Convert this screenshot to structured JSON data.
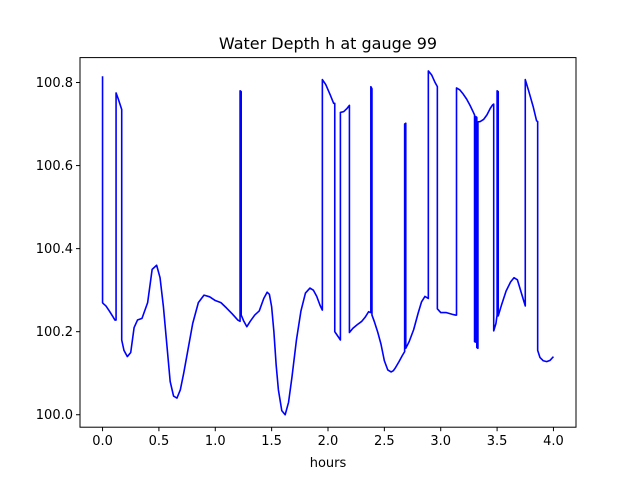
{
  "chart_data": {
    "type": "line",
    "title": "Water Depth h at gauge 99",
    "xlabel": "hours",
    "ylabel": "",
    "xlim": [
      -0.2,
      4.2
    ],
    "ylim": [
      99.97,
      100.86
    ],
    "xticks": [
      0.0,
      0.5,
      1.0,
      1.5,
      2.0,
      2.5,
      3.0,
      3.5,
      4.0
    ],
    "xtick_labels": [
      "0.0",
      "0.5",
      "1.0",
      "1.5",
      "2.0",
      "2.5",
      "3.0",
      "3.5",
      "4.0"
    ],
    "yticks": [
      100.0,
      100.2,
      100.4,
      100.6,
      100.8
    ],
    "ytick_labels": [
      "100.0",
      "100.2",
      "100.4",
      "100.6",
      "100.8"
    ],
    "grid": false,
    "series": [
      {
        "color": "#0000ff",
        "x": [
          0.0,
          0.0,
          0.005,
          0.03,
          0.06,
          0.09,
          0.11,
          0.12,
          0.12,
          0.14,
          0.17,
          0.17,
          0.19,
          0.22,
          0.25,
          0.28,
          0.31,
          0.35,
          0.4,
          0.44,
          0.48,
          0.51,
          0.54,
          0.57,
          0.6,
          0.63,
          0.66,
          0.69,
          0.72,
          0.76,
          0.8,
          0.85,
          0.9,
          0.95,
          1.0,
          1.05,
          1.1,
          1.15,
          1.2,
          1.22,
          1.22,
          1.23,
          1.23,
          1.25,
          1.28,
          1.31,
          1.35,
          1.39,
          1.43,
          1.46,
          1.48,
          1.5,
          1.52,
          1.54,
          1.56,
          1.59,
          1.62,
          1.65,
          1.68,
          1.72,
          1.76,
          1.8,
          1.84,
          1.87,
          1.9,
          1.93,
          1.95,
          1.95,
          1.98,
          2.02,
          2.05,
          2.06,
          2.06,
          2.08,
          2.1,
          2.11,
          2.11,
          2.14,
          2.17,
          2.19,
          2.19,
          2.22,
          2.26,
          2.3,
          2.33,
          2.36,
          2.38,
          2.38,
          2.39,
          2.39,
          2.41,
          2.44,
          2.47,
          2.5,
          2.53,
          2.56,
          2.58,
          2.6,
          2.63,
          2.66,
          2.68,
          2.68,
          2.69,
          2.69,
          2.72,
          2.76,
          2.8,
          2.83,
          2.86,
          2.89,
          2.89,
          2.92,
          2.95,
          2.97,
          2.97,
          3.0,
          3.05,
          3.1,
          3.13,
          3.14,
          3.14,
          3.17,
          3.2,
          3.23,
          3.26,
          3.29,
          3.3,
          3.3,
          3.31,
          3.31,
          3.32,
          3.32,
          3.33,
          3.33,
          3.35,
          3.38,
          3.41,
          3.44,
          3.46,
          3.47,
          3.47,
          3.49,
          3.5,
          3.5,
          3.51,
          3.51,
          3.54,
          3.58,
          3.62,
          3.65,
          3.68,
          3.71,
          3.73,
          3.75,
          3.75,
          3.78,
          3.82,
          3.85,
          3.86,
          3.86,
          3.88,
          3.91,
          3.94,
          3.97,
          4.0
        ],
        "y": [
          100.815,
          100.27,
          100.268,
          100.262,
          100.25,
          100.237,
          100.228,
          100.228,
          100.775,
          100.76,
          100.735,
          100.18,
          100.155,
          100.14,
          100.15,
          100.21,
          100.228,
          100.232,
          100.27,
          100.35,
          100.36,
          100.33,
          100.26,
          100.17,
          100.08,
          100.045,
          100.04,
          100.06,
          100.1,
          100.16,
          100.22,
          100.27,
          100.288,
          100.284,
          100.275,
          100.27,
          100.257,
          100.243,
          100.228,
          100.225,
          100.78,
          100.778,
          100.24,
          100.227,
          100.212,
          100.225,
          100.24,
          100.25,
          100.28,
          100.295,
          100.29,
          100.26,
          100.2,
          100.12,
          100.06,
          100.01,
          100.0,
          100.03,
          100.09,
          100.18,
          100.25,
          100.293,
          100.305,
          100.3,
          100.285,
          100.263,
          100.252,
          100.807,
          100.795,
          100.77,
          100.75,
          100.75,
          100.2,
          100.192,
          100.184,
          100.18,
          100.728,
          100.73,
          100.738,
          100.745,
          100.198,
          100.208,
          100.217,
          100.225,
          100.235,
          100.248,
          100.246,
          100.79,
          100.785,
          100.24,
          100.225,
          100.2,
          100.17,
          100.13,
          100.108,
          100.103,
          100.106,
          100.114,
          100.128,
          100.143,
          100.152,
          100.7,
          100.702,
          100.16,
          100.176,
          100.205,
          100.245,
          100.272,
          100.285,
          100.28,
          100.828,
          100.818,
          100.8,
          100.79,
          100.255,
          100.246,
          100.246,
          100.242,
          100.24,
          100.24,
          100.787,
          100.782,
          100.772,
          100.76,
          100.745,
          100.728,
          100.722,
          100.176,
          100.175,
          100.718,
          100.716,
          100.162,
          100.16,
          100.705,
          100.706,
          100.711,
          100.722,
          100.738,
          100.746,
          100.748,
          100.202,
          100.22,
          100.24,
          100.78,
          100.778,
          100.238,
          100.265,
          100.298,
          100.32,
          100.33,
          100.325,
          100.298,
          100.28,
          100.262,
          100.807,
          100.78,
          100.742,
          100.708,
          100.706,
          100.155,
          100.138,
          100.13,
          100.128,
          100.131,
          100.14
        ]
      }
    ]
  }
}
